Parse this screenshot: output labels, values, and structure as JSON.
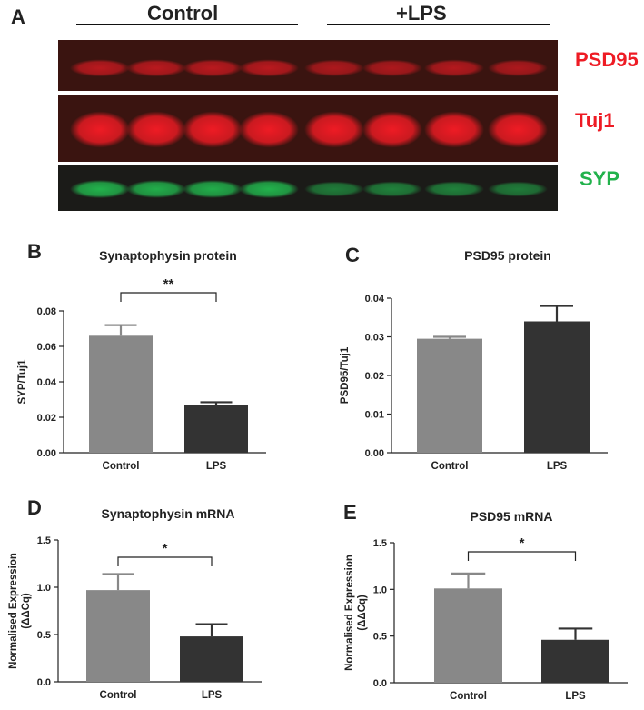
{
  "panel_a": {
    "letter": "A",
    "groups": [
      {
        "name": "Control",
        "lanes": 4
      },
      {
        "name": "+LPS",
        "lanes": 4
      }
    ],
    "bands": [
      {
        "label": "PSD95",
        "color": "#ee1b24",
        "intensities": [
          0.55,
          0.55,
          0.55,
          0.55,
          0.45,
          0.45,
          0.5,
          0.45
        ]
      },
      {
        "label": "Tuj1",
        "color": "#ee1b24",
        "intensities": [
          1,
          1,
          1,
          1,
          1,
          1,
          1,
          1
        ]
      },
      {
        "label": "SYP",
        "color": "#22b24c",
        "intensities": [
          1,
          0.95,
          0.95,
          1,
          0.45,
          0.5,
          0.5,
          0.45
        ]
      }
    ]
  },
  "chart_data": [
    {
      "letter": "B",
      "type": "bar",
      "title": "Synaptophysin protein",
      "categories": [
        "Control",
        "LPS"
      ],
      "values": [
        0.066,
        0.027
      ],
      "errors": [
        0.006,
        0.0015
      ],
      "colors": [
        "#888888",
        "#333333"
      ],
      "ylabel": "SYP/Tuj1",
      "ylim": [
        0,
        0.08
      ],
      "yticks": [
        "0.00",
        "0.02",
        "0.04",
        "0.06",
        "0.08"
      ],
      "significance": "**"
    },
    {
      "letter": "C",
      "type": "bar",
      "title": "PSD95 protein",
      "categories": [
        "Control",
        "LPS"
      ],
      "values": [
        0.0295,
        0.034
      ],
      "errors": [
        0.0005,
        0.004
      ],
      "colors": [
        "#888888",
        "#333333"
      ],
      "ylabel": "PSD95/Tuj1",
      "ylim": [
        0,
        0.04
      ],
      "yticks": [
        "0.00",
        "0.01",
        "0.02",
        "0.03",
        "0.04"
      ],
      "significance": ""
    },
    {
      "letter": "D",
      "type": "bar",
      "title": "Synaptophysin mRNA",
      "categories": [
        "Control",
        "LPS"
      ],
      "values": [
        0.97,
        0.48
      ],
      "errors": [
        0.17,
        0.13
      ],
      "colors": [
        "#888888",
        "#333333"
      ],
      "ylabel": "Normalised Expression",
      "ylabel2": "(ΔΔCq)",
      "ylim": [
        0,
        1.5
      ],
      "yticks": [
        "0.0",
        "0.5",
        "1.0",
        "1.5"
      ],
      "significance": "*"
    },
    {
      "letter": "E",
      "type": "bar",
      "title": "PSD95 mRNA",
      "categories": [
        "Control",
        "LPS"
      ],
      "values": [
        1.01,
        0.46
      ],
      "errors": [
        0.16,
        0.12
      ],
      "colors": [
        "#888888",
        "#333333"
      ],
      "ylabel": "Normalised Expression",
      "ylabel2": "(ΔΔCq)",
      "ylim": [
        0,
        1.5
      ],
      "yticks": [
        "0.0",
        "0.5",
        "1.0",
        "1.5"
      ],
      "significance": "*"
    }
  ]
}
